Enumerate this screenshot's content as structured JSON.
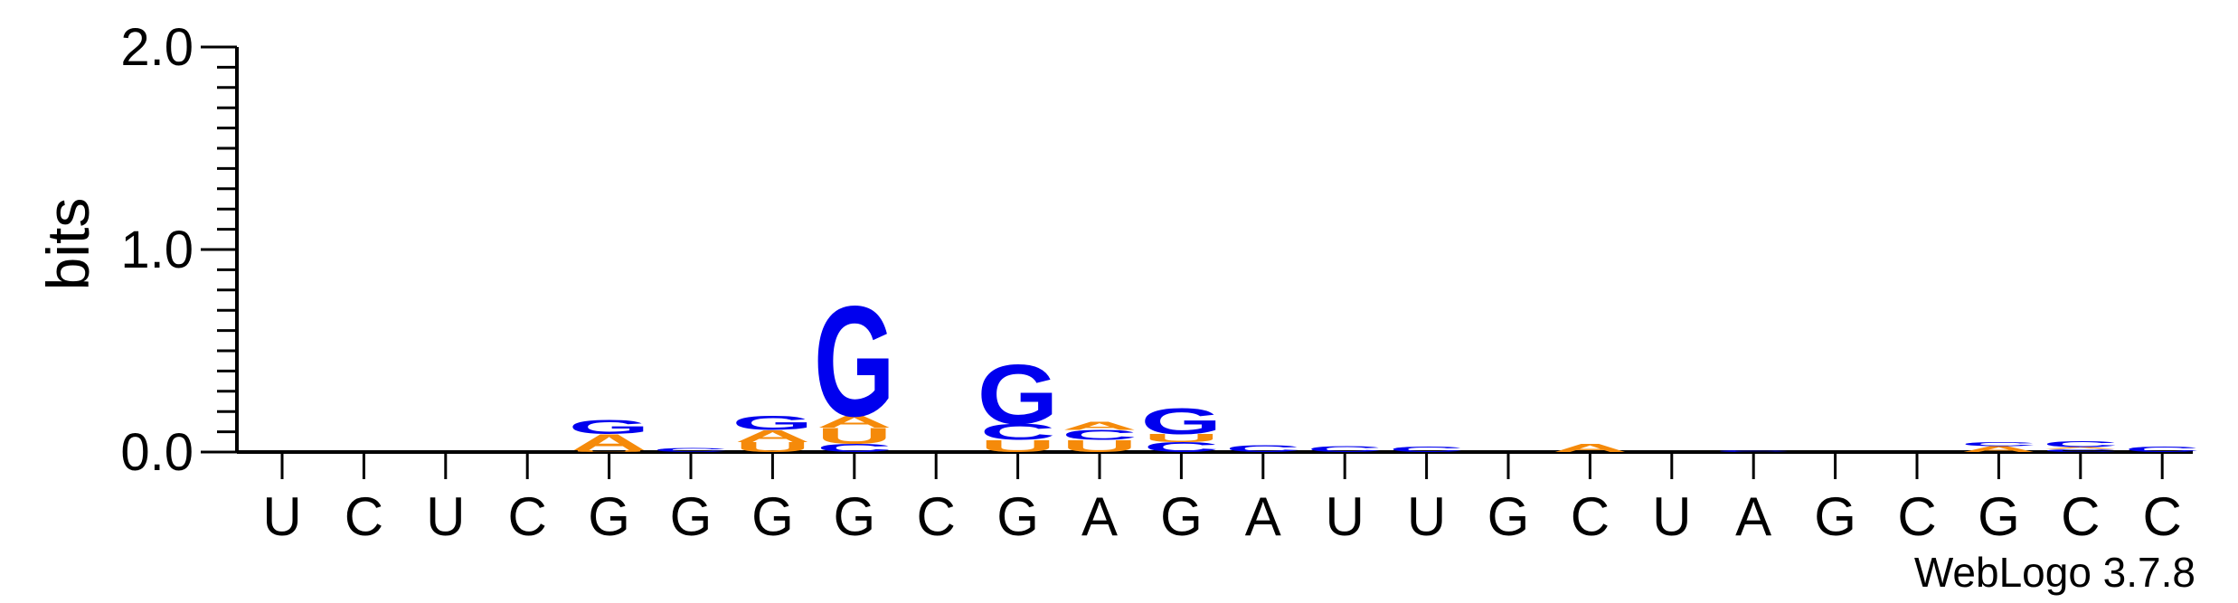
{
  "chart_data": {
    "type": "sequence-logo",
    "ylabel": "bits",
    "ylim": [
      0,
      2.0
    ],
    "yticks": [
      "0.0",
      "1.0",
      "2.0"
    ],
    "credit": "WebLogo 3.7.8",
    "colors": {
      "A": "#f58a0a",
      "U": "#f58a0a",
      "C": "#0000ee",
      "G": "#0000ee"
    },
    "positions": [
      {
        "label": "U",
        "stack": []
      },
      {
        "label": "C",
        "stack": []
      },
      {
        "label": "U",
        "stack": []
      },
      {
        "label": "C",
        "stack": []
      },
      {
        "label": "G",
        "stack": [
          {
            "base": "U",
            "bits": 0.01
          },
          {
            "base": "A",
            "bits": 0.08
          },
          {
            "base": "G",
            "bits": 0.07
          }
        ]
      },
      {
        "label": "G",
        "stack": [
          {
            "base": "C",
            "bits": 0.02
          }
        ]
      },
      {
        "label": "G",
        "stack": [
          {
            "base": "U",
            "bits": 0.05
          },
          {
            "base": "A",
            "bits": 0.06
          },
          {
            "base": "G",
            "bits": 0.07
          }
        ]
      },
      {
        "label": "G",
        "stack": [
          {
            "base": "C",
            "bits": 0.04
          },
          {
            "base": "U",
            "bits": 0.08
          },
          {
            "base": "A",
            "bits": 0.06
          },
          {
            "base": "G",
            "bits": 0.56
          }
        ]
      },
      {
        "label": "C",
        "stack": []
      },
      {
        "label": "G",
        "stack": [
          {
            "base": "U",
            "bits": 0.06
          },
          {
            "base": "C",
            "bits": 0.08
          },
          {
            "base": "G",
            "bits": 0.3
          }
        ]
      },
      {
        "label": "A",
        "stack": [
          {
            "base": "U",
            "bits": 0.06
          },
          {
            "base": "C",
            "bits": 0.05
          },
          {
            "base": "A",
            "bits": 0.04
          }
        ]
      },
      {
        "label": "G",
        "stack": [
          {
            "base": "C",
            "bits": 0.05
          },
          {
            "base": "U",
            "bits": 0.04
          },
          {
            "base": "G",
            "bits": 0.13
          }
        ]
      },
      {
        "label": "A",
        "stack": [
          {
            "base": "C",
            "bits": 0.035
          }
        ]
      },
      {
        "label": "U",
        "stack": [
          {
            "base": "C",
            "bits": 0.03
          }
        ]
      },
      {
        "label": "U",
        "stack": [
          {
            "base": "C",
            "bits": 0.025
          }
        ]
      },
      {
        "label": "G",
        "stack": []
      },
      {
        "label": "C",
        "stack": [
          {
            "base": "A",
            "bits": 0.04
          }
        ]
      },
      {
        "label": "U",
        "stack": []
      },
      {
        "label": "A",
        "stack": [
          {
            "base": "C",
            "bits": 0.01
          }
        ]
      },
      {
        "label": "G",
        "stack": []
      },
      {
        "label": "C",
        "stack": []
      },
      {
        "label": "G",
        "stack": [
          {
            "base": "A",
            "bits": 0.03
          },
          {
            "base": "C",
            "bits": 0.02
          }
        ]
      },
      {
        "label": "C",
        "stack": [
          {
            "base": "C",
            "bits": 0.015
          },
          {
            "base": "A",
            "bits": 0.01
          },
          {
            "base": "C",
            "bits": 0.03
          }
        ]
      },
      {
        "label": "C",
        "stack": [
          {
            "base": "C",
            "bits": 0.025
          }
        ]
      }
    ]
  }
}
